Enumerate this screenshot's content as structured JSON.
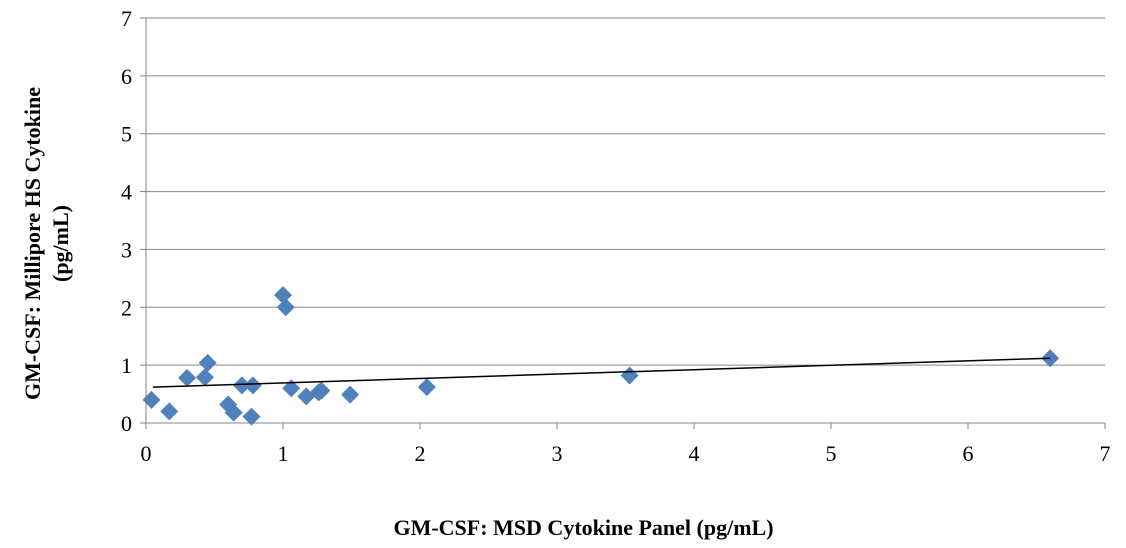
{
  "chart_data": {
    "type": "scatter",
    "title": "",
    "xlabel": "GM-CSF:  MSD Cytokine Panel (pg/mL)",
    "ylabel_lines": [
      "GM-CSF:  Millipore HS Cytokine",
      "(pg/mL)"
    ],
    "xlim": [
      0,
      7
    ],
    "ylim": [
      0,
      7
    ],
    "x_ticks": [
      0,
      1,
      2,
      3,
      4,
      5,
      6,
      7
    ],
    "y_ticks": [
      0,
      1,
      2,
      3,
      4,
      5,
      6,
      7
    ],
    "grid": "horizontal",
    "legend": "none",
    "marker": "diamond",
    "marker_color": "#4F81BD",
    "gridline_color": "#868686",
    "trendline": {
      "type": "linear",
      "x": [
        0.05,
        6.6
      ],
      "y": [
        0.62,
        1.12
      ],
      "color": "#000000"
    },
    "series": [
      {
        "points": [
          {
            "x": 0.04,
            "y": 0.4
          },
          {
            "x": 0.17,
            "y": 0.2
          },
          {
            "x": 0.3,
            "y": 0.78
          },
          {
            "x": 0.43,
            "y": 0.79
          },
          {
            "x": 0.45,
            "y": 1.04
          },
          {
            "x": 0.6,
            "y": 0.32
          },
          {
            "x": 0.64,
            "y": 0.18
          },
          {
            "x": 0.7,
            "y": 0.65
          },
          {
            "x": 0.77,
            "y": 0.11
          },
          {
            "x": 0.78,
            "y": 0.65
          },
          {
            "x": 1.0,
            "y": 2.21
          },
          {
            "x": 1.02,
            "y": 2.0
          },
          {
            "x": 1.06,
            "y": 0.6
          },
          {
            "x": 1.17,
            "y": 0.46
          },
          {
            "x": 1.26,
            "y": 0.53
          },
          {
            "x": 1.28,
            "y": 0.56
          },
          {
            "x": 1.49,
            "y": 0.49
          },
          {
            "x": 2.05,
            "y": 0.62
          },
          {
            "x": 3.53,
            "y": 0.82
          },
          {
            "x": 6.6,
            "y": 1.12
          }
        ]
      }
    ]
  }
}
